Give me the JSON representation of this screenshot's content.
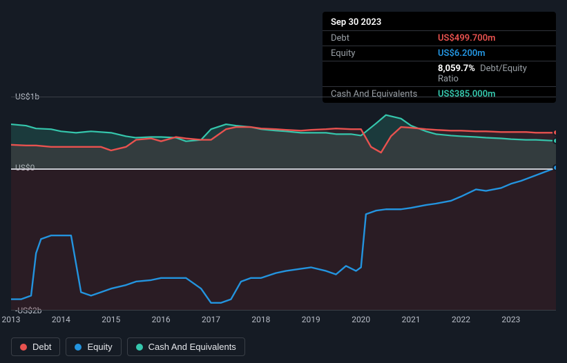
{
  "tooltip": {
    "date": "Sep 30 2023",
    "rows": [
      {
        "label": "Debt",
        "value": "US$499.700m",
        "color": "#e8524f"
      },
      {
        "label": "Equity",
        "value": "US$6.200m",
        "color": "#2394df"
      },
      {
        "label": "",
        "value_html": "ratio",
        "ratio_num": "8,059.7%",
        "ratio_txt": "Debt/Equity Ratio",
        "color": ""
      },
      {
        "label": "Cash And Equivalents",
        "value": "US$385.000m",
        "color": "#35c7ad"
      }
    ]
  },
  "chart": {
    "type": "line-area",
    "background_color": "#151b24",
    "grid_color": "#3a3f47",
    "zero_line_color": "#c8cdd4",
    "axis_text_color": "#b8bdc7",
    "y": {
      "min": -2.0,
      "max": 1.0,
      "ticks": [
        {
          "v": 1.0,
          "label": "US$1b"
        },
        {
          "v": 0.0,
          "label": "US$0"
        },
        {
          "v": -2.0,
          "label": "-US$2b"
        }
      ]
    },
    "x": {
      "min": 2013.0,
      "max": 2023.9,
      "ticks": [
        2013,
        2014,
        2015,
        2016,
        2017,
        2018,
        2019,
        2020,
        2021,
        2022,
        2023
      ]
    },
    "series": [
      {
        "name": "Cash And Equivalents",
        "color": "#35c7ad",
        "fill_opacity": 0.18,
        "line_width": 2.2,
        "area_to": 0,
        "points": [
          [
            2013.0,
            0.62
          ],
          [
            2013.3,
            0.6
          ],
          [
            2013.5,
            0.56
          ],
          [
            2013.8,
            0.55
          ],
          [
            2014.0,
            0.52
          ],
          [
            2014.3,
            0.5
          ],
          [
            2014.6,
            0.52
          ],
          [
            2015.0,
            0.5
          ],
          [
            2015.3,
            0.45
          ],
          [
            2015.5,
            0.43
          ],
          [
            2015.8,
            0.44
          ],
          [
            2016.0,
            0.44
          ],
          [
            2016.3,
            0.43
          ],
          [
            2016.5,
            0.38
          ],
          [
            2016.8,
            0.4
          ],
          [
            2017.0,
            0.55
          ],
          [
            2017.3,
            0.62
          ],
          [
            2017.5,
            0.6
          ],
          [
            2017.8,
            0.58
          ],
          [
            2018.0,
            0.55
          ],
          [
            2018.3,
            0.53
          ],
          [
            2018.5,
            0.52
          ],
          [
            2018.8,
            0.5
          ],
          [
            2019.0,
            0.5
          ],
          [
            2019.3,
            0.5
          ],
          [
            2019.5,
            0.48
          ],
          [
            2019.8,
            0.48
          ],
          [
            2020.0,
            0.46
          ],
          [
            2020.3,
            0.63
          ],
          [
            2020.5,
            0.75
          ],
          [
            2020.8,
            0.7
          ],
          [
            2021.0,
            0.6
          ],
          [
            2021.3,
            0.52
          ],
          [
            2021.5,
            0.48
          ],
          [
            2021.8,
            0.46
          ],
          [
            2022.0,
            0.45
          ],
          [
            2022.3,
            0.44
          ],
          [
            2022.5,
            0.43
          ],
          [
            2022.8,
            0.42
          ],
          [
            2023.0,
            0.41
          ],
          [
            2023.3,
            0.4
          ],
          [
            2023.5,
            0.4
          ],
          [
            2023.9,
            0.385
          ]
        ]
      },
      {
        "name": "Debt",
        "color": "#e8524f",
        "fill_opacity": 0.12,
        "line_width": 2.4,
        "area_to": 0,
        "negative_fill": true,
        "points": [
          [
            2013.0,
            0.33
          ],
          [
            2013.3,
            0.32
          ],
          [
            2013.5,
            0.32
          ],
          [
            2013.8,
            0.3
          ],
          [
            2014.0,
            0.3
          ],
          [
            2014.3,
            0.3
          ],
          [
            2014.5,
            0.3
          ],
          [
            2014.8,
            0.3
          ],
          [
            2015.0,
            0.25
          ],
          [
            2015.3,
            0.3
          ],
          [
            2015.5,
            0.4
          ],
          [
            2015.8,
            0.42
          ],
          [
            2016.0,
            0.38
          ],
          [
            2016.3,
            0.44
          ],
          [
            2016.5,
            0.42
          ],
          [
            2016.8,
            0.4
          ],
          [
            2017.0,
            0.4
          ],
          [
            2017.3,
            0.55
          ],
          [
            2017.5,
            0.58
          ],
          [
            2017.8,
            0.58
          ],
          [
            2018.0,
            0.56
          ],
          [
            2018.3,
            0.55
          ],
          [
            2018.5,
            0.54
          ],
          [
            2018.8,
            0.53
          ],
          [
            2019.0,
            0.54
          ],
          [
            2019.3,
            0.55
          ],
          [
            2019.5,
            0.56
          ],
          [
            2019.8,
            0.55
          ],
          [
            2020.0,
            0.55
          ],
          [
            2020.2,
            0.3
          ],
          [
            2020.4,
            0.22
          ],
          [
            2020.6,
            0.45
          ],
          [
            2020.8,
            0.58
          ],
          [
            2021.0,
            0.57
          ],
          [
            2021.3,
            0.55
          ],
          [
            2021.5,
            0.54
          ],
          [
            2021.8,
            0.53
          ],
          [
            2022.0,
            0.53
          ],
          [
            2022.3,
            0.52
          ],
          [
            2022.5,
            0.52
          ],
          [
            2022.8,
            0.51
          ],
          [
            2023.0,
            0.51
          ],
          [
            2023.3,
            0.51
          ],
          [
            2023.5,
            0.5
          ],
          [
            2023.9,
            0.4997
          ]
        ]
      },
      {
        "name": "Equity",
        "color": "#2394df",
        "fill_opacity": 0.0,
        "line_width": 2.4,
        "area_to": null,
        "points": [
          [
            2013.0,
            -1.85
          ],
          [
            2013.2,
            -1.85
          ],
          [
            2013.4,
            -1.8
          ],
          [
            2013.5,
            -1.2
          ],
          [
            2013.6,
            -1.0
          ],
          [
            2013.8,
            -0.95
          ],
          [
            2014.0,
            -0.95
          ],
          [
            2014.2,
            -0.95
          ],
          [
            2014.4,
            -1.75
          ],
          [
            2014.6,
            -1.8
          ],
          [
            2014.8,
            -1.75
          ],
          [
            2015.0,
            -1.7
          ],
          [
            2015.3,
            -1.65
          ],
          [
            2015.5,
            -1.6
          ],
          [
            2015.8,
            -1.58
          ],
          [
            2016.0,
            -1.55
          ],
          [
            2016.3,
            -1.55
          ],
          [
            2016.5,
            -1.55
          ],
          [
            2016.8,
            -1.7
          ],
          [
            2017.0,
            -1.9
          ],
          [
            2017.2,
            -1.9
          ],
          [
            2017.4,
            -1.85
          ],
          [
            2017.6,
            -1.6
          ],
          [
            2017.8,
            -1.55
          ],
          [
            2018.0,
            -1.55
          ],
          [
            2018.3,
            -1.48
          ],
          [
            2018.5,
            -1.45
          ],
          [
            2018.8,
            -1.42
          ],
          [
            2019.0,
            -1.4
          ],
          [
            2019.3,
            -1.45
          ],
          [
            2019.5,
            -1.5
          ],
          [
            2019.7,
            -1.38
          ],
          [
            2019.9,
            -1.45
          ],
          [
            2020.0,
            -1.4
          ],
          [
            2020.1,
            -0.65
          ],
          [
            2020.3,
            -0.6
          ],
          [
            2020.5,
            -0.58
          ],
          [
            2020.8,
            -0.58
          ],
          [
            2021.0,
            -0.56
          ],
          [
            2021.3,
            -0.52
          ],
          [
            2021.5,
            -0.5
          ],
          [
            2021.8,
            -0.46
          ],
          [
            2022.0,
            -0.4
          ],
          [
            2022.3,
            -0.3
          ],
          [
            2022.5,
            -0.32
          ],
          [
            2022.8,
            -0.28
          ],
          [
            2023.0,
            -0.22
          ],
          [
            2023.2,
            -0.18
          ],
          [
            2023.5,
            -0.1
          ],
          [
            2023.9,
            0.0062
          ]
        ]
      }
    ],
    "end_markers": [
      {
        "series": "Debt",
        "color": "#e8524f",
        "x": 2023.9,
        "y": 0.4997
      },
      {
        "series": "Equity",
        "color": "#2394df",
        "x": 2023.9,
        "y": 0.0062
      },
      {
        "series": "Cash And Equivalents",
        "color": "#35c7ad",
        "x": 2023.9,
        "y": 0.385
      }
    ]
  },
  "legend": [
    {
      "label": "Debt",
      "color": "#e8524f"
    },
    {
      "label": "Equity",
      "color": "#2394df"
    },
    {
      "label": "Cash And Equivalents",
      "color": "#35c7ad"
    }
  ]
}
